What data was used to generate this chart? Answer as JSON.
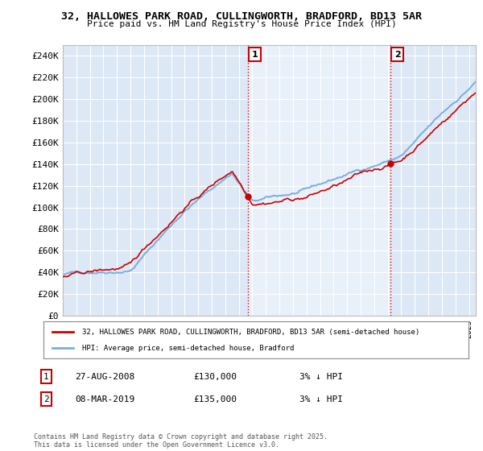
{
  "title1": "32, HALLOWES PARK ROAD, CULLINGWORTH, BRADFORD, BD13 5AR",
  "title2": "Price paid vs. HM Land Registry's House Price Index (HPI)",
  "ylim": [
    0,
    250000
  ],
  "yticks": [
    0,
    20000,
    40000,
    60000,
    80000,
    100000,
    120000,
    140000,
    160000,
    180000,
    200000,
    220000,
    240000
  ],
  "ytick_labels": [
    "£0",
    "£20K",
    "£40K",
    "£60K",
    "£80K",
    "£100K",
    "£120K",
    "£140K",
    "£160K",
    "£180K",
    "£200K",
    "£220K",
    "£240K"
  ],
  "sale1_date": 2008.65,
  "sale1_price": 130000,
  "sale2_date": 2019.18,
  "sale2_price": 135000,
  "hpi_color": "#7aade0",
  "price_color": "#cc0000",
  "vline_color": "#cc0000",
  "background_color": "#dce8f5",
  "highlight_color": "#e8f0fa",
  "legend_text1": "32, HALLOWES PARK ROAD, CULLINGWORTH, BRADFORD, BD13 5AR (semi-detached house)",
  "legend_text2": "HPI: Average price, semi-detached house, Bradford",
  "footer": "Contains HM Land Registry data © Crown copyright and database right 2025.\nThis data is licensed under the Open Government Licence v3.0.",
  "annotation1_date": "27-AUG-2008",
  "annotation1_price": "£130,000",
  "annotation1_hpi": "3% ↓ HPI",
  "annotation2_date": "08-MAR-2019",
  "annotation2_price": "£135,000",
  "annotation2_hpi": "3% ↓ HPI"
}
